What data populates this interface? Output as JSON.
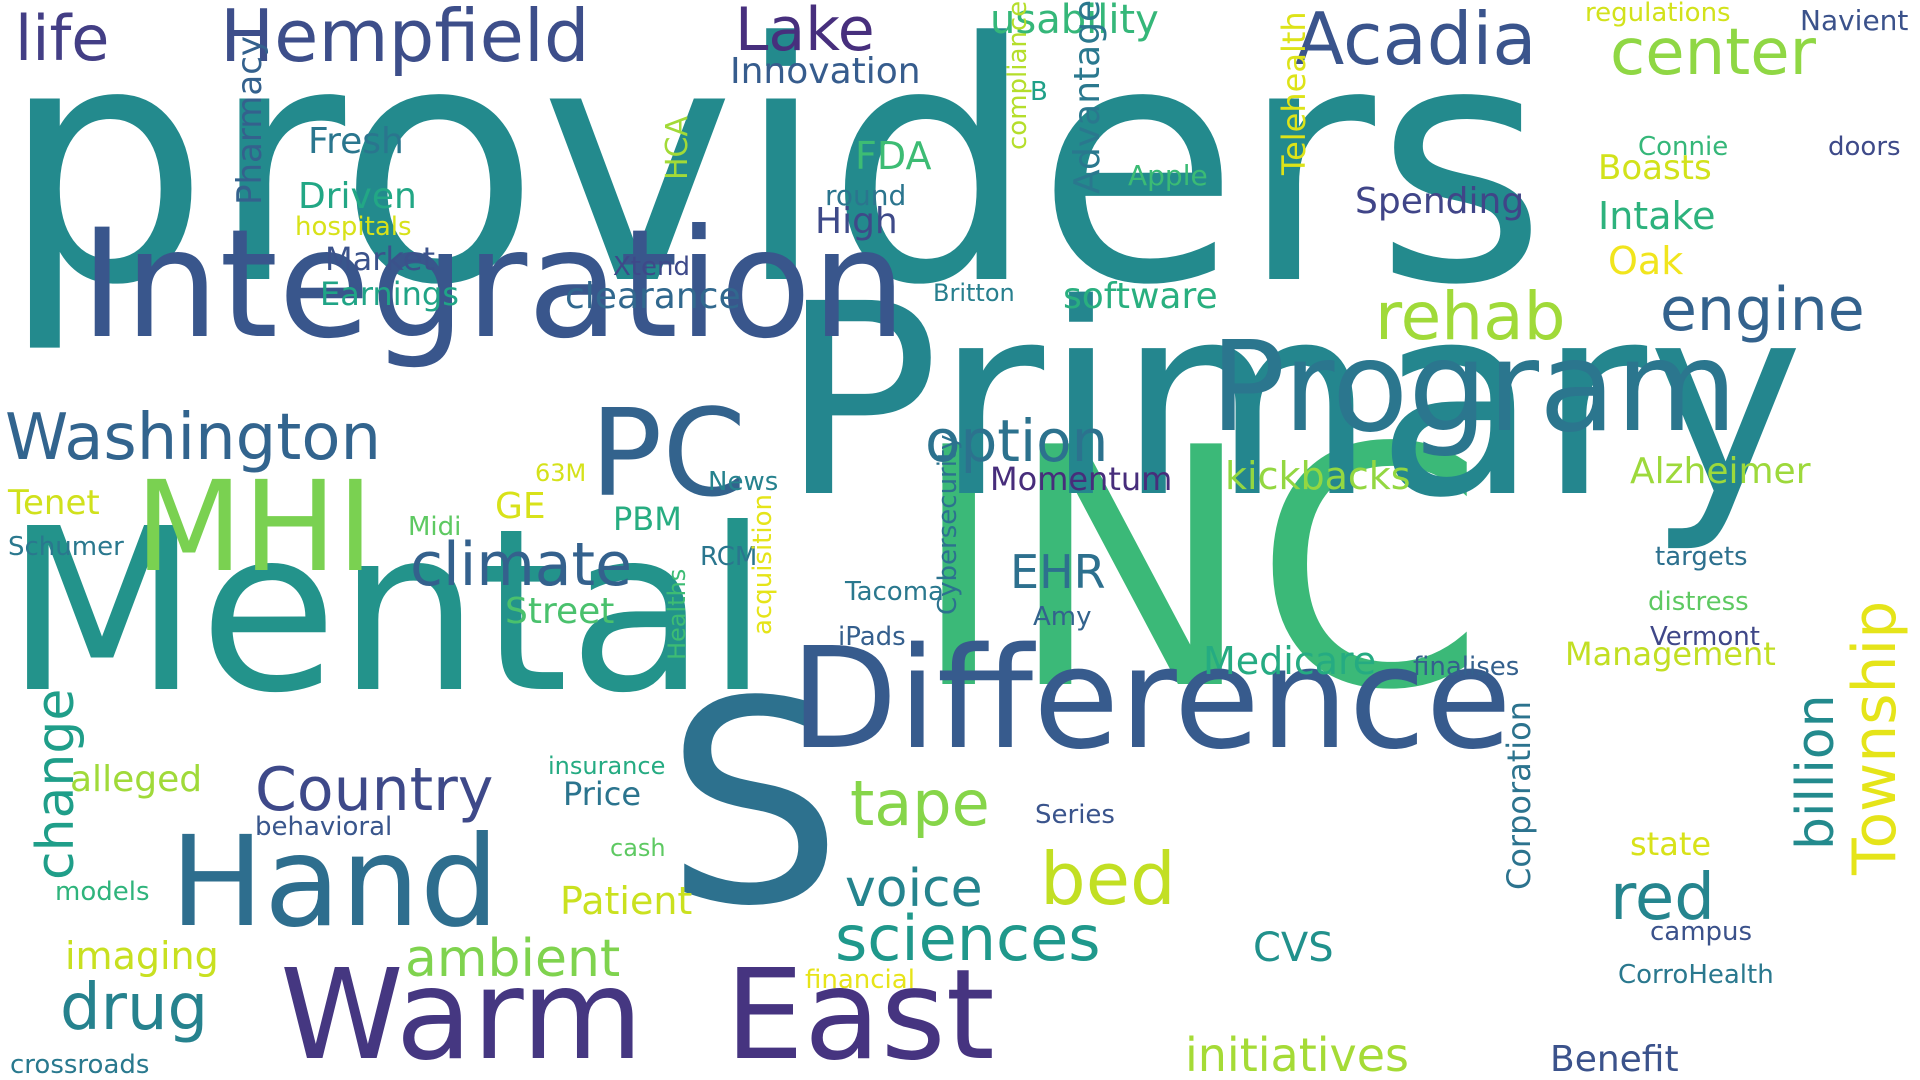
{
  "word_cloud": {
    "words": [
      {
        "id": "providers",
        "text": "providers",
        "color": "#238a8d"
      },
      {
        "id": "inc",
        "text": "INC",
        "color": "#3bb978"
      },
      {
        "id": "primary",
        "text": "Primary",
        "color": "#24868e"
      },
      {
        "id": "mental",
        "text": "Mental",
        "color": "#23938b"
      },
      {
        "id": "s",
        "text": "S",
        "color": "#2d718e"
      },
      {
        "id": "integration",
        "text": "Integration",
        "color": "#39568c"
      },
      {
        "id": "difference",
        "text": "Difference",
        "color": "#375b8d"
      },
      {
        "id": "program",
        "text": "Program",
        "color": "#2b768e"
      },
      {
        "id": "warm",
        "text": "Warm",
        "color": "#453781"
      },
      {
        "id": "east",
        "text": "East",
        "color": "#463480"
      },
      {
        "id": "hand",
        "text": "Hand",
        "color": "#2e6e8e"
      },
      {
        "id": "mhi",
        "text": "MHI",
        "color": "#7ad151"
      },
      {
        "id": "pc",
        "text": "PC",
        "color": "#33638d"
      },
      {
        "id": "hempfield",
        "text": "Hempfield",
        "color": "#3d4e8a"
      },
      {
        "id": "acadia",
        "text": "Acadia",
        "color": "#3a548c"
      },
      {
        "id": "lake",
        "text": "Lake",
        "color": "#472f7d"
      },
      {
        "id": "life",
        "text": "life",
        "color": "#433e85"
      },
      {
        "id": "center",
        "text": "center",
        "color": "#8fd744"
      },
      {
        "id": "rehab",
        "text": "rehab",
        "color": "#a0da39"
      },
      {
        "id": "engine",
        "text": "engine",
        "color": "#33628d"
      },
      {
        "id": "washington",
        "text": "Washington",
        "color": "#32648e"
      },
      {
        "id": "option",
        "text": "option",
        "color": "#2c728e"
      },
      {
        "id": "climate",
        "text": "climate",
        "color": "#34618d"
      },
      {
        "id": "country",
        "text": "Country",
        "color": "#3e4989"
      },
      {
        "id": "tape",
        "text": "tape",
        "color": "#86d549"
      },
      {
        "id": "bed",
        "text": "bed",
        "color": "#c2df23"
      },
      {
        "id": "voice",
        "text": "voice",
        "color": "#25848e"
      },
      {
        "id": "sciences",
        "text": "sciences",
        "color": "#1f988b"
      },
      {
        "id": "drug",
        "text": "drug",
        "color": "#26828e"
      },
      {
        "id": "ambient",
        "text": "ambient",
        "color": "#7fd34e"
      },
      {
        "id": "change",
        "text": "change",
        "color": "#1f9e89"
      },
      {
        "id": "township",
        "text": "Township",
        "color": "#e5e419"
      },
      {
        "id": "billion",
        "text": "billion",
        "color": "#238a8d"
      },
      {
        "id": "red",
        "text": "red",
        "color": "#25858e"
      },
      {
        "id": "initiatives",
        "text": "initiatives",
        "color": "#a5db36"
      },
      {
        "id": "usability",
        "text": "usability",
        "color": "#35b779"
      },
      {
        "id": "innovation",
        "text": "Innovation",
        "color": "#365c8d"
      },
      {
        "id": "regulations",
        "text": "regulations",
        "color": "#d2e21b"
      },
      {
        "id": "navient",
        "text": "Navient",
        "color": "#3b528b"
      },
      {
        "id": "advantage",
        "text": "Advantage",
        "color": "#2a788e"
      },
      {
        "id": "pharmacy",
        "text": "Pharmacy",
        "color": "#34618d"
      },
      {
        "id": "telehealth",
        "text": "Telehealth",
        "color": "#dde318"
      },
      {
        "id": "fresh",
        "text": "Fresh",
        "color": "#2a768e"
      },
      {
        "id": "fda",
        "text": "FDA",
        "color": "#3dbc74"
      },
      {
        "id": "driven",
        "text": "Driven",
        "color": "#22a785"
      },
      {
        "id": "hospitals",
        "text": "hospitals",
        "color": "#d8e219"
      },
      {
        "id": "hca",
        "text": "HCA",
        "color": "#a2da37"
      },
      {
        "id": "round",
        "text": "round",
        "color": "#2b758e"
      },
      {
        "id": "high",
        "text": "High",
        "color": "#3e4a89"
      },
      {
        "id": "compliance",
        "text": "compliance",
        "color": "#b5de2b"
      },
      {
        "id": "b",
        "text": "B",
        "color": "#1fa088"
      },
      {
        "id": "apple",
        "text": "Apple",
        "color": "#3bbb75"
      },
      {
        "id": "spending",
        "text": "Spending",
        "color": "#404588"
      },
      {
        "id": "connie",
        "text": "Connie",
        "color": "#35b779"
      },
      {
        "id": "doors",
        "text": "doors",
        "color": "#3e4a89"
      },
      {
        "id": "boasts",
        "text": "Boasts",
        "color": "#d2e21b"
      },
      {
        "id": "intake",
        "text": "Intake",
        "color": "#2db27d"
      },
      {
        "id": "oak",
        "text": "Oak",
        "color": "#f1e51d"
      },
      {
        "id": "market",
        "text": "Market",
        "color": "#3b528b"
      },
      {
        "id": "xtend",
        "text": "Xtend",
        "color": "#3e4989"
      },
      {
        "id": "earnings",
        "text": "Earnings",
        "color": "#20a486"
      },
      {
        "id": "clearance",
        "text": "clearance",
        "color": "#31688e"
      },
      {
        "id": "britton",
        "text": "Britton",
        "color": "#277f8e"
      },
      {
        "id": "software",
        "text": "software",
        "color": "#29af7f"
      },
      {
        "id": "kickbacks",
        "text": "kickbacks",
        "color": "#93d741"
      },
      {
        "id": "alzheimer",
        "text": "Alzheimer",
        "color": "#9dd93b"
      },
      {
        "id": "momentum",
        "text": "Momentum",
        "color": "#472d7b"
      },
      {
        "id": "tenet",
        "text": "Tenet",
        "color": "#d0e11c"
      },
      {
        "id": "63m",
        "text": "63M",
        "color": "#d5e21a"
      },
      {
        "id": "ge",
        "text": "GE",
        "color": "#d8e219"
      },
      {
        "id": "news",
        "text": "News",
        "color": "#26828e"
      },
      {
        "id": "schumer",
        "text": "Schumer",
        "color": "#2a788e"
      },
      {
        "id": "midi",
        "text": "Midi",
        "color": "#5ec962"
      },
      {
        "id": "pbm",
        "text": "PBM",
        "color": "#27ad81"
      },
      {
        "id": "rcm",
        "text": "RCM",
        "color": "#2a768e"
      },
      {
        "id": "ehr",
        "text": "EHR",
        "color": "#2d708e"
      },
      {
        "id": "targets",
        "text": "targets",
        "color": "#2d708e"
      },
      {
        "id": "distress",
        "text": "distress",
        "color": "#5ec962"
      },
      {
        "id": "street",
        "text": "Street",
        "color": "#4ac16d"
      },
      {
        "id": "tacoma",
        "text": "Tacoma",
        "color": "#2a788e"
      },
      {
        "id": "amy",
        "text": "Amy",
        "color": "#33638d"
      },
      {
        "id": "cybersecurity",
        "text": "Cybersecurity",
        "color": "#2c728e"
      },
      {
        "id": "acquisition",
        "text": "acquisition",
        "color": "#e5e419"
      },
      {
        "id": "healths",
        "text": "Healths",
        "color": "#3dbc74"
      },
      {
        "id": "ipads",
        "text": "iPads",
        "color": "#355f8d"
      },
      {
        "id": "vermont",
        "text": "Vermont",
        "color": "#3f4788"
      },
      {
        "id": "management",
        "text": "Management",
        "color": "#c2df23"
      },
      {
        "id": "medicare",
        "text": "Medicare",
        "color": "#25ab82"
      },
      {
        "id": "finalises",
        "text": "finalises",
        "color": "#34608d"
      },
      {
        "id": "insurance",
        "text": "insurance",
        "color": "#25ab82"
      },
      {
        "id": "alleged",
        "text": "alleged",
        "color": "#a0da39"
      },
      {
        "id": "price",
        "text": "Price",
        "color": "#2b748e"
      },
      {
        "id": "behavioral",
        "text": "behavioral",
        "color": "#39568c"
      },
      {
        "id": "series",
        "text": "Series",
        "color": "#3a548c"
      },
      {
        "id": "corporation",
        "text": "Corporation",
        "color": "#2c738e"
      },
      {
        "id": "cash",
        "text": "cash",
        "color": "#5ec962"
      },
      {
        "id": "state",
        "text": "state",
        "color": "#d8e219"
      },
      {
        "id": "models",
        "text": "models",
        "color": "#2fb47c"
      },
      {
        "id": "patient",
        "text": "Patient",
        "color": "#cae11f"
      },
      {
        "id": "campus",
        "text": "campus",
        "color": "#3b528b"
      },
      {
        "id": "imaging",
        "text": "imaging",
        "color": "#c8e020"
      },
      {
        "id": "cvs",
        "text": "CVS",
        "color": "#21918c"
      },
      {
        "id": "financial",
        "text": "financial",
        "color": "#e7e419"
      },
      {
        "id": "corrohealth",
        "text": "CorroHealth",
        "color": "#2a788e"
      },
      {
        "id": "crossroads",
        "text": "crossroads",
        "color": "#29798e"
      },
      {
        "id": "benefit",
        "text": "Benefit",
        "color": "#3b528b"
      }
    ]
  }
}
